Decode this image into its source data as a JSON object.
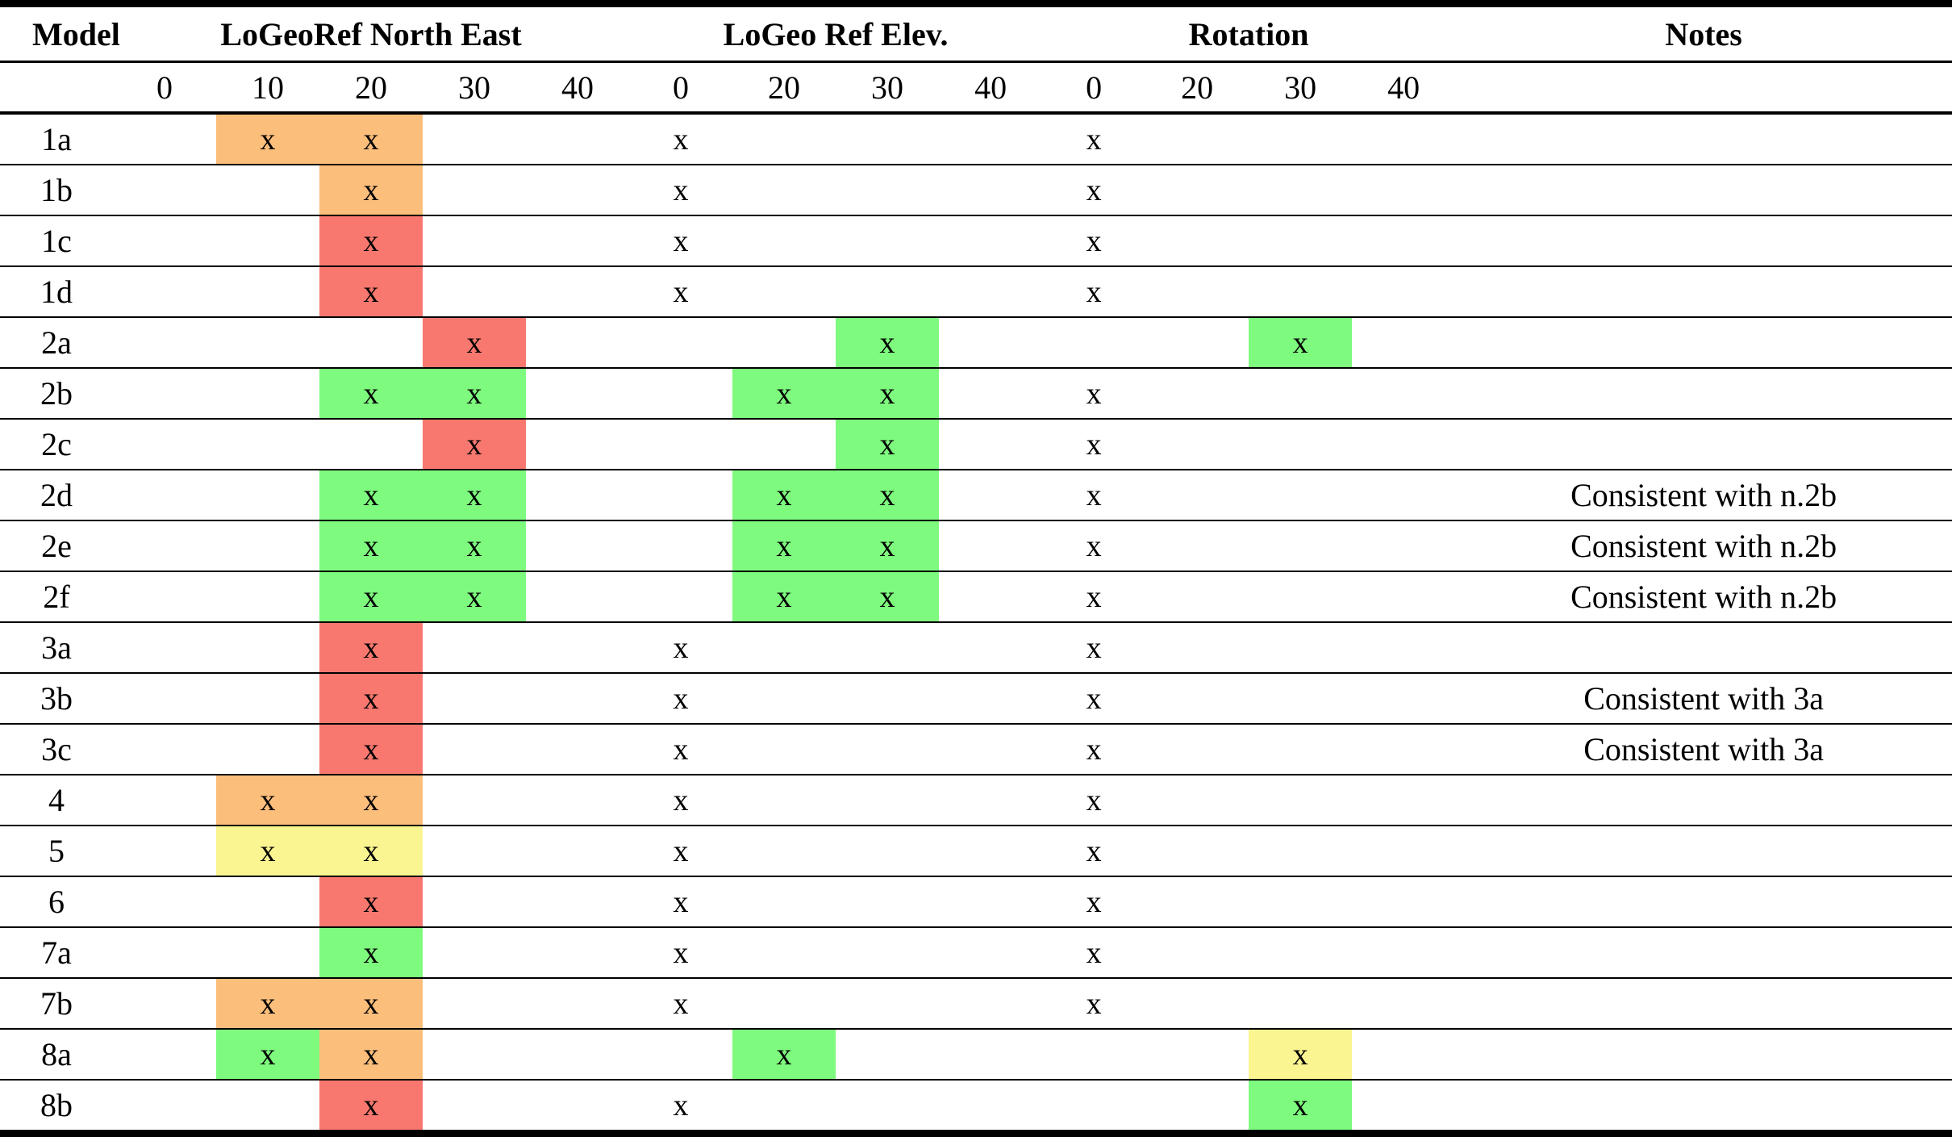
{
  "header": {
    "model": "Model",
    "groups": [
      {
        "label": "LoGeoRef North East",
        "subcols": [
          "0",
          "10",
          "20",
          "30",
          "40"
        ]
      },
      {
        "label": "LoGeo Ref Elev.",
        "subcols": [
          "0",
          "20",
          "30",
          "40"
        ]
      },
      {
        "label": "Rotation",
        "subcols": [
          "0",
          "20",
          "30",
          "40"
        ]
      }
    ],
    "notes": "Notes"
  },
  "mark_glyph": "x",
  "colors": {
    "orange": "#FCBE7B",
    "red": "#F8786F",
    "green": "#7EFA7E",
    "yellow": "#FAF491"
  },
  "rows": [
    {
      "model": "1a",
      "cells": [
        "",
        "x:orange",
        "x:orange",
        "",
        "",
        "x",
        "",
        "",
        "",
        "x",
        "",
        "",
        ""
      ],
      "notes": ""
    },
    {
      "model": "1b",
      "cells": [
        "",
        "",
        "x:orange",
        "",
        "",
        "x",
        "",
        "",
        "",
        "x",
        "",
        "",
        ""
      ],
      "notes": ""
    },
    {
      "model": "1c",
      "cells": [
        "",
        "",
        "x:red",
        "",
        "",
        "x",
        "",
        "",
        "",
        "x",
        "",
        "",
        ""
      ],
      "notes": ""
    },
    {
      "model": "1d",
      "cells": [
        "",
        "",
        "x:red",
        "",
        "",
        "x",
        "",
        "",
        "",
        "x",
        "",
        "",
        ""
      ],
      "notes": ""
    },
    {
      "model": "2a",
      "cells": [
        "",
        "",
        "",
        "x:red",
        "",
        "",
        "",
        "x:green",
        "",
        "",
        "",
        "x:green",
        ""
      ],
      "notes": ""
    },
    {
      "model": "2b",
      "cells": [
        "",
        "",
        "x:green",
        "x:green",
        "",
        "",
        "x:green",
        "x:green",
        "",
        "x",
        "",
        "",
        ""
      ],
      "notes": ""
    },
    {
      "model": "2c",
      "cells": [
        "",
        "",
        "",
        "x:red",
        "",
        "",
        "",
        "x:green",
        "",
        "x",
        "",
        "",
        ""
      ],
      "notes": ""
    },
    {
      "model": "2d",
      "cells": [
        "",
        "",
        "x:green",
        "x:green",
        "",
        "",
        "x:green",
        "x:green",
        "",
        "x",
        "",
        "",
        ""
      ],
      "notes": "Consistent with n.2b"
    },
    {
      "model": "2e",
      "cells": [
        "",
        "",
        "x:green",
        "x:green",
        "",
        "",
        "x:green",
        "x:green",
        "",
        "x",
        "",
        "",
        ""
      ],
      "notes": "Consistent with n.2b"
    },
    {
      "model": "2f",
      "cells": [
        "",
        "",
        "x:green",
        "x:green",
        "",
        "",
        "x:green",
        "x:green",
        "",
        "x",
        "",
        "",
        ""
      ],
      "notes": "Consistent with n.2b"
    },
    {
      "model": "3a",
      "cells": [
        "",
        "",
        "x:red",
        "",
        "",
        "x",
        "",
        "",
        "",
        "x",
        "",
        "",
        ""
      ],
      "notes": ""
    },
    {
      "model": "3b",
      "cells": [
        "",
        "",
        "x:red",
        "",
        "",
        "x",
        "",
        "",
        "",
        "x",
        "",
        "",
        ""
      ],
      "notes": "Consistent with 3a"
    },
    {
      "model": "3c",
      "cells": [
        "",
        "",
        "x:red",
        "",
        "",
        "x",
        "",
        "",
        "",
        "x",
        "",
        "",
        ""
      ],
      "notes": "Consistent with 3a"
    },
    {
      "model": "4",
      "cells": [
        "",
        "x:orange",
        "x:orange",
        "",
        "",
        "x",
        "",
        "",
        "",
        "x",
        "",
        "",
        ""
      ],
      "notes": ""
    },
    {
      "model": "5",
      "cells": [
        "",
        "x:yellow",
        "x:yellow",
        "",
        "",
        "x",
        "",
        "",
        "",
        "x",
        "",
        "",
        ""
      ],
      "notes": ""
    },
    {
      "model": "6",
      "cells": [
        "",
        "",
        "x:red",
        "",
        "",
        "x",
        "",
        "",
        "",
        "x",
        "",
        "",
        ""
      ],
      "notes": ""
    },
    {
      "model": "7a",
      "cells": [
        "",
        "",
        "x:green",
        "",
        "",
        "x",
        "",
        "",
        "",
        "x",
        "",
        "",
        ""
      ],
      "notes": ""
    },
    {
      "model": "7b",
      "cells": [
        "",
        "x:orange",
        "x:orange",
        "",
        "",
        "x",
        "",
        "",
        "",
        "x",
        "",
        "",
        ""
      ],
      "notes": ""
    },
    {
      "model": "8a",
      "cells": [
        "",
        "x:green",
        "x:orange",
        "",
        "",
        "",
        "x:green",
        "",
        "",
        "",
        "",
        "x:yellow",
        ""
      ],
      "notes": ""
    },
    {
      "model": "8b",
      "cells": [
        "",
        "",
        "x:red",
        "",
        "",
        "x",
        "",
        "",
        "",
        "",
        "",
        "x:green",
        ""
      ],
      "notes": ""
    }
  ]
}
